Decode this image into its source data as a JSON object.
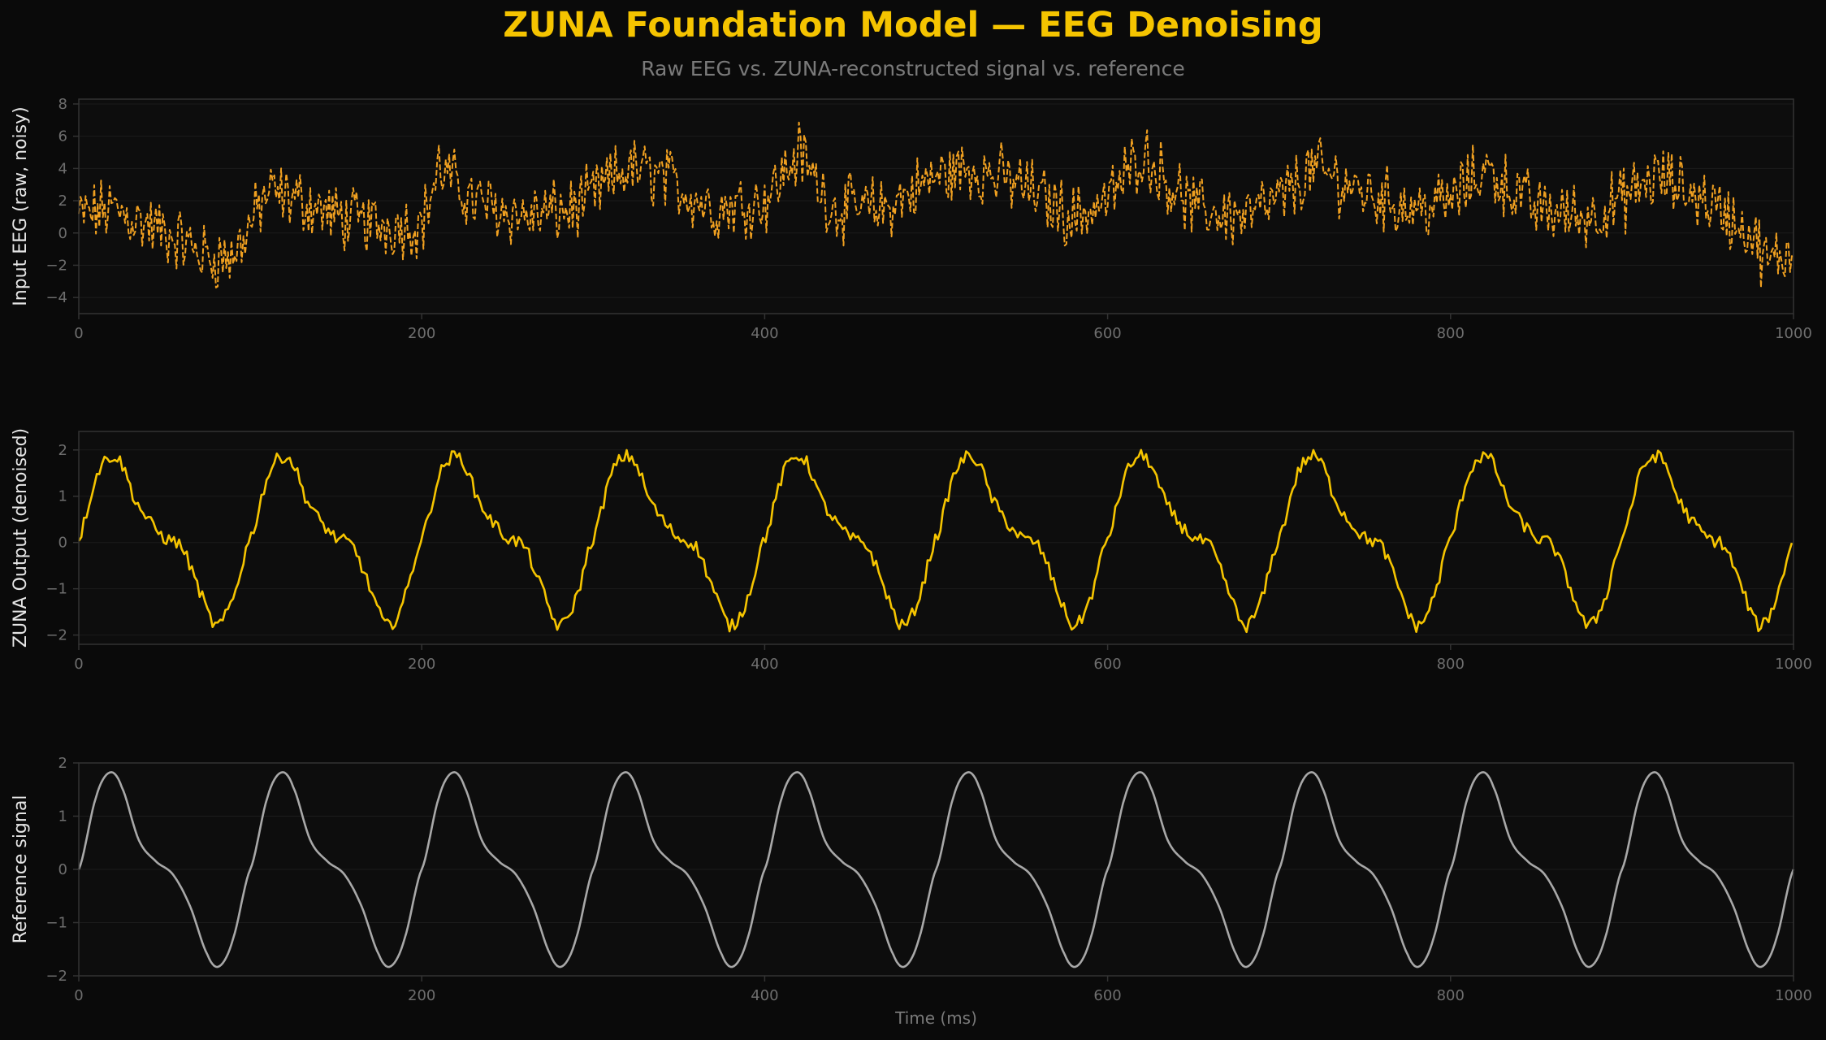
{
  "title": "ZUNA Foundation Model — EEG Denoising",
  "subtitle": "Raw EEG vs. ZUNA-reconstructed signal vs. reference",
  "colors": {
    "background": "#0a0a0a",
    "axes_face": "#0d0d0d",
    "spine": "#333333",
    "grid": "#1c1c1c",
    "tick_text": "#6e6e6e",
    "title": "#f5c400",
    "input_line": "#f0a020",
    "output_line": "#f5c400",
    "reference_line": "#a8a8a8"
  },
  "chart_data": [
    {
      "type": "line",
      "ylabel": "Input EEG  (raw, noisy)",
      "xlabel": "",
      "xlim": [
        0,
        1000
      ],
      "ylim": [
        -5,
        8.3
      ],
      "xticks": [
        0,
        200,
        400,
        600,
        800,
        1000
      ],
      "yticks": [
        -4,
        -2,
        0,
        2,
        4,
        6,
        8
      ],
      "line_style": "dashed",
      "grid": true,
      "series": [
        {
          "x": [
            0,
            20,
            40,
            60,
            75,
            90,
            110,
            130,
            150,
            175,
            200,
            210,
            230,
            260,
            290,
            320,
            340,
            370,
            400,
            420,
            440,
            470,
            500,
            520,
            550,
            580,
            600,
            620,
            650,
            680,
            700,
            720,
            750,
            780,
            800,
            820,
            850,
            880,
            900,
            920,
            950,
            975,
            985,
            1000
          ],
          "y": [
            1,
            1.5,
            0.5,
            -0.5,
            -1.5,
            -1.5,
            2.5,
            2,
            1,
            0.5,
            0.5,
            4,
            2,
            1,
            1.5,
            4,
            3.5,
            1.5,
            2,
            5,
            1.5,
            1.5,
            3.5,
            4,
            3,
            1,
            2,
            5,
            1.5,
            1,
            2,
            4,
            2.5,
            1.5,
            2,
            4,
            1.5,
            1,
            2,
            3.5,
            2,
            0,
            -2,
            -1
          ]
        }
      ]
    },
    {
      "type": "line",
      "ylabel": "ZUNA Output  (denoised)",
      "xlabel": "",
      "xlim": [
        0,
        1000
      ],
      "ylim": [
        -2.2,
        2.4
      ],
      "xticks": [
        0,
        200,
        400,
        600,
        800,
        1000
      ],
      "yticks": [
        -2,
        -1,
        0,
        1,
        2
      ],
      "line_style": "solid",
      "grid": true,
      "series": [
        {
          "x": [
            0,
            10,
            18,
            25,
            32,
            40,
            50,
            60,
            70,
            80,
            90,
            100
          ],
          "y": [
            0.1,
            1.4,
            1.85,
            1.7,
            1.0,
            0.5,
            0.1,
            -0.1,
            -1.0,
            -1.8,
            -1.2,
            0.1
          ]
        }
      ],
      "note_periodic_every": 100
    },
    {
      "type": "line",
      "ylabel": "Reference signal",
      "xlabel": "Time (ms)",
      "xlim": [
        0,
        1000
      ],
      "ylim": [
        -2,
        2
      ],
      "xticks": [
        0,
        200,
        400,
        600,
        800,
        1000
      ],
      "yticks": [
        -2,
        -1,
        0,
        1,
        2
      ],
      "line_style": "solid",
      "grid": true,
      "series": [
        {
          "x": [
            0,
            10,
            18,
            25,
            35,
            45,
            55,
            65,
            75,
            82,
            90,
            100
          ],
          "y": [
            0,
            1.35,
            1.82,
            1.55,
            0.55,
            0.15,
            -0.1,
            -0.7,
            -1.6,
            -1.82,
            -1.3,
            0
          ]
        }
      ],
      "note_periodic_every": 100
    }
  ]
}
